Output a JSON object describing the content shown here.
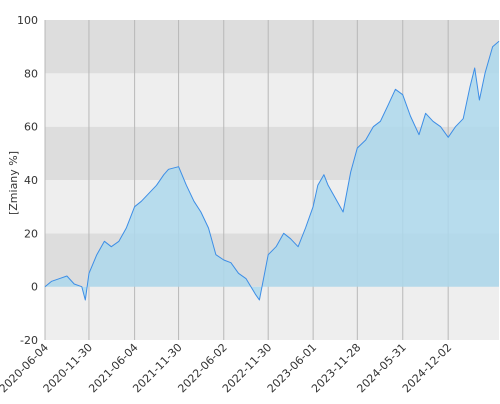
{
  "chart_data": {
    "type": "area",
    "ylabel": "[Zmiany %]",
    "ylim": [
      -20,
      100
    ],
    "y_ticks": [
      100,
      80,
      60,
      40,
      20,
      0,
      -20
    ],
    "x_range": [
      "2020-06-04",
      "2025-06-27"
    ],
    "x_ticks": [
      "2020-06-04",
      "2020-11-30",
      "2021-06-04",
      "2021-11-30",
      "2022-06-02",
      "2022-11-30",
      "2023-06-01",
      "2023-11-28",
      "2024-05-31",
      "2024-12-02"
    ],
    "grid": true,
    "colors": {
      "line": "#3d8ee6",
      "fill": "#add8ec",
      "band_dark": "#dddddd",
      "band_light": "#eeeeee",
      "gridline": "#b8b8b8"
    },
    "series": [
      {
        "x": [
          "2020-06-04",
          "2020-07-01",
          "2020-08-01",
          "2020-09-01",
          "2020-10-01",
          "2020-11-01",
          "2020-11-15",
          "2020-11-30",
          "2021-01-01",
          "2021-02-01",
          "2021-03-01",
          "2021-04-01",
          "2021-05-01",
          "2021-06-04",
          "2021-07-01",
          "2021-08-01",
          "2021-09-01",
          "2021-10-01",
          "2021-10-20",
          "2021-11-30",
          "2022-01-01",
          "2022-02-01",
          "2022-03-01",
          "2022-04-01",
          "2022-05-01",
          "2022-06-02",
          "2022-07-01",
          "2022-08-01",
          "2022-09-01",
          "2022-10-10",
          "2022-10-25",
          "2022-11-30",
          "2023-01-01",
          "2023-02-01",
          "2023-03-01",
          "2023-04-01",
          "2023-05-01",
          "2023-06-01",
          "2023-06-20",
          "2023-07-15",
          "2023-08-01",
          "2023-09-01",
          "2023-10-01",
          "2023-11-01",
          "2023-11-28",
          "2024-01-01",
          "2024-02-01",
          "2024-03-01",
          "2024-04-01",
          "2024-05-01",
          "2024-05-31",
          "2024-07-01",
          "2024-08-05",
          "2024-09-01",
          "2024-10-01",
          "2024-11-01",
          "2024-12-02",
          "2025-01-01",
          "2025-02-01",
          "2025-03-01",
          "2025-03-20",
          "2025-04-08",
          "2025-05-01",
          "2025-06-01",
          "2025-06-27"
        ],
        "y": [
          0,
          2,
          3,
          4,
          1,
          0,
          -5,
          5,
          12,
          17,
          15,
          17,
          22,
          30,
          32,
          35,
          38,
          42,
          44,
          45,
          38,
          32,
          28,
          22,
          12,
          10,
          9,
          5,
          3,
          -3,
          -5,
          12,
          15,
          20,
          18,
          15,
          22,
          30,
          38,
          42,
          38,
          33,
          28,
          43,
          52,
          55,
          60,
          62,
          68,
          74,
          72,
          64,
          57,
          65,
          62,
          60,
          56,
          60,
          63,
          75,
          82,
          70,
          80,
          90,
          92
        ]
      }
    ]
  }
}
